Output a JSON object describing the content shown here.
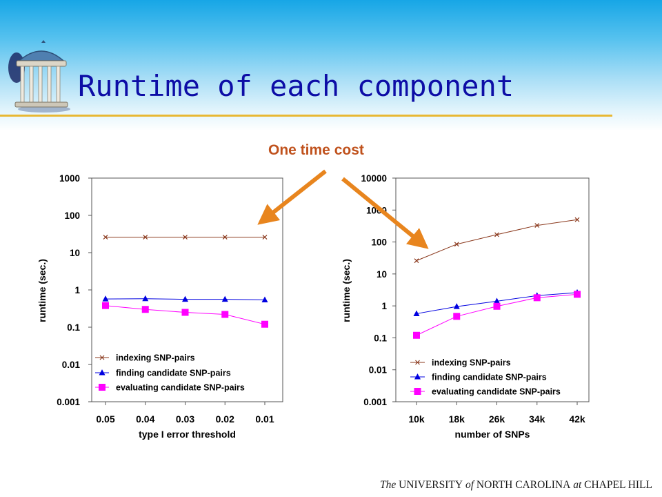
{
  "slide": {
    "title": "Runtime of each component",
    "callout": "One time cost",
    "footer": {
      "p1": "The",
      "p2": "UNIVERSITY",
      "p3": "of",
      "p4": "NORTH CAROLINA",
      "p5": "at",
      "p6": "CHAPEL HILL"
    }
  },
  "colors": {
    "title": "#0d0da6",
    "callout": "#c0521d",
    "arrow": "#e8851e",
    "rule": "#e8b833"
  },
  "chart_data": [
    {
      "type": "line",
      "categories": [
        "0.05",
        "0.04",
        "0.03",
        "0.02",
        "0.01"
      ],
      "xlabel": "type I error threshold",
      "ylabel": "runtime (sec.)",
      "yscale": "log",
      "ylim": [
        0.001,
        1000
      ],
      "yticks": [
        "0.001",
        "0.01",
        "0.1",
        "1",
        "10",
        "100",
        "1000"
      ],
      "grid": false,
      "legend_position": "bottom",
      "series": [
        {
          "name": "indexing SNP-pairs",
          "values": [
            26,
            26,
            26,
            26,
            26
          ],
          "color": "#8b3a1e",
          "marker": "x"
        },
        {
          "name": "finding candidate SNP-pairs",
          "values": [
            0.57,
            0.58,
            0.56,
            0.56,
            0.54
          ],
          "color": "#0000e0",
          "marker": "triangle"
        },
        {
          "name": "evaluating candidate SNP-pairs",
          "values": [
            0.38,
            0.3,
            0.25,
            0.22,
            0.12
          ],
          "color": "#ff00ff",
          "marker": "square"
        }
      ]
    },
    {
      "type": "line",
      "categories": [
        "10k",
        "18k",
        "26k",
        "34k",
        "42k"
      ],
      "xlabel": "number of SNPs",
      "ylabel": "runtime (sec.)",
      "yscale": "log",
      "ylim": [
        0.001,
        10000
      ],
      "yticks": [
        "0.001",
        "0.01",
        "0.1",
        "1",
        "10",
        "100",
        "1000",
        "10000"
      ],
      "grid": false,
      "legend_position": "bottom",
      "series": [
        {
          "name": "indexing SNP-pairs",
          "values": [
            26,
            85,
            170,
            330,
            500
          ],
          "color": "#8b3a1e",
          "marker": "x"
        },
        {
          "name": "finding candidate SNP-pairs",
          "values": [
            0.57,
            0.95,
            1.4,
            2.1,
            2.6
          ],
          "color": "#0000e0",
          "marker": "triangle"
        },
        {
          "name": "evaluating candidate SNP-pairs",
          "values": [
            0.12,
            0.47,
            0.97,
            1.8,
            2.3
          ],
          "color": "#ff00ff",
          "marker": "square"
        }
      ]
    }
  ]
}
